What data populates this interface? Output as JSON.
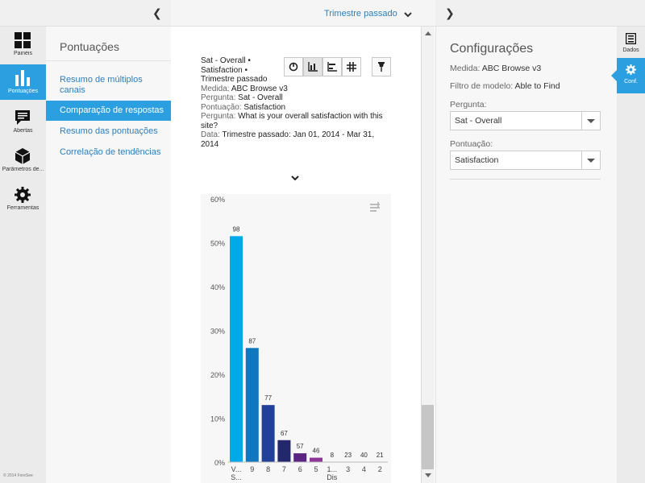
{
  "topbar": {
    "period_label": "Trimestre passado"
  },
  "leftnav": {
    "items": [
      {
        "label": "Painéis"
      },
      {
        "label": "Pontuações"
      },
      {
        "label": "Abertas"
      },
      {
        "label": "Parâmetros de..."
      },
      {
        "label": "Ferramentas"
      }
    ],
    "copyright": "© 2014 ForeSee"
  },
  "subnav": {
    "title": "Pontuações",
    "items": [
      {
        "label": "Resumo de múltiplos canais"
      },
      {
        "label": "Comparação de respostas"
      },
      {
        "label": "Resumo das pontuações"
      },
      {
        "label": "Correlação de tendências"
      }
    ]
  },
  "info": {
    "heading_line1": "Sat - Overall •",
    "heading_line2": "Satisfaction •",
    "heading_line3": "Trimestre passado",
    "measure_label": "Medida:",
    "measure_value": "ABC Browse v3",
    "question_label": "Pergunta:",
    "question_value": "Sat - Overall",
    "score_label": "Pontuação:",
    "score_value": "Satisfaction",
    "question2_label": "Pergunta:",
    "question2_value": "What is your overall satisfaction with this site?",
    "date_label": "Data:",
    "date_value": "Trimestre passado: Jan 01, 2014 - Mar 31, 2014"
  },
  "settings": {
    "title": "Configurações",
    "measure_label": "Medida:",
    "measure_value": "ABC Browse v3",
    "model_filter_label": "Filtro de modelo:",
    "model_filter_value": "Able to Find",
    "question_label": "Pergunta:",
    "question_value": "Sat - Overall",
    "score_label": "Pontuação:",
    "score_value": "Satisfaction"
  },
  "righttabs": [
    {
      "label": "Dados"
    },
    {
      "label": "Conf."
    }
  ],
  "colors": {
    "accent": "#2b9fe0",
    "link": "#2c7fc1"
  },
  "chart_data": {
    "type": "bar",
    "categories": [
      "V... S...",
      "9",
      "8",
      "7",
      "6",
      "5",
      "1... Dis",
      "3",
      "4",
      "2"
    ],
    "values": [
      51.5,
      26,
      13,
      5,
      2,
      1,
      0,
      0,
      0,
      0
    ],
    "data_labels": [
      "98",
      "87",
      "77",
      "67",
      "57",
      "46",
      "8",
      "23",
      "40",
      "21"
    ],
    "bar_colors": [
      "#00a9e8",
      "#0f76c0",
      "#21409a",
      "#23276b",
      "#5b2482",
      "#8e3598",
      "#8e3598",
      "#8e3598",
      "#8e3598",
      "#8e3598"
    ],
    "yticks": [
      "0%",
      "10%",
      "20%",
      "30%",
      "40%",
      "50%",
      "60%"
    ],
    "ylim": [
      0,
      60
    ],
    "grid": false
  }
}
